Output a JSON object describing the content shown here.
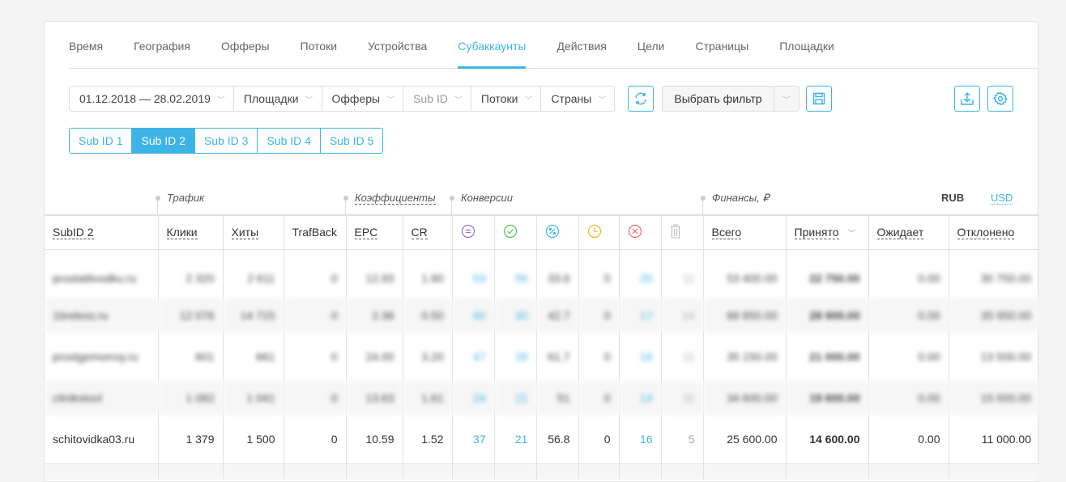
{
  "tabs": [
    "Время",
    "География",
    "Офферы",
    "Потоки",
    "Устройства",
    "Субаккаунты",
    "Действия",
    "Цели",
    "Страницы",
    "Площадки"
  ],
  "active_tab": "Субаккаунты",
  "filters": {
    "date": "01.12.2018 — 28.02.2019",
    "platforms": "Площадки",
    "offers": "Офферы",
    "subid": "Sub ID",
    "flows": "Потоки",
    "countries": "Страны",
    "select_filter": "Выбрать фильтр"
  },
  "subid_tabs": [
    "Sub ID 1",
    "Sub ID 2",
    "Sub ID 3",
    "Sub ID 4",
    "Sub ID 5"
  ],
  "groups": {
    "traffic": "Трафик",
    "coeffs": "Коэффициенты",
    "conversions": "Конверсии",
    "finance": "Финансы, ₽"
  },
  "currency": {
    "rub": "RUB",
    "usd": "USD"
  },
  "columns": [
    "SubID 2",
    "Клики",
    "Хиты",
    "TrafBack",
    "EPC",
    "CR",
    "total-conv-icon",
    "approved-icon",
    "percent-icon",
    "pending-icon",
    "rejected-icon",
    "trash-icon",
    "Всего",
    "Принято",
    "Ожидает",
    "Отклонено"
  ],
  "rows": [
    [
      "prostatitvodku.ru",
      "2 320",
      "2 611",
      "0",
      "12.93",
      "1.90",
      "53",
      "56",
      "33.6",
      "0",
      "20",
      "11",
      "53 400.00",
      "22 750.00",
      "0.00",
      "30 750.00"
    ],
    [
      "1tireless.ru",
      "12 076",
      "14 715",
      "0",
      "2.36",
      "0.50",
      "60",
      "30",
      "42.7",
      "0",
      "17",
      "14",
      "68 850.00",
      "28 900.00",
      "0.00",
      "35 950.00"
    ],
    [
      "prostgemorroy.ru",
      "601",
      "661",
      "0",
      "24.00",
      "3.20",
      "47",
      "28",
      "61.7",
      "0",
      "16",
      "11",
      "35 150.00",
      "21 000.00",
      "0.00",
      "13 500.00"
    ],
    [
      "clinikstool",
      "1 082",
      "1 041",
      "0",
      "13.63",
      "1.61",
      "24",
      "21",
      "51",
      "0",
      "14",
      "11",
      "34 600.00",
      "19 600.00",
      "0.00",
      "15 000.00"
    ],
    [
      "schitovidka03.ru",
      "1 379",
      "1 500",
      "0",
      "10.59",
      "1.52",
      "37",
      "21",
      "56.8",
      "0",
      "16",
      "5",
      "25 600.00",
      "14 600.00",
      "0.00",
      "11 000.00"
    ]
  ],
  "colors": {
    "accent": "#3db4e5",
    "purple": "#9b6cd6",
    "green": "#4cc552",
    "orange": "#f5b21d",
    "red": "#f0686a"
  }
}
